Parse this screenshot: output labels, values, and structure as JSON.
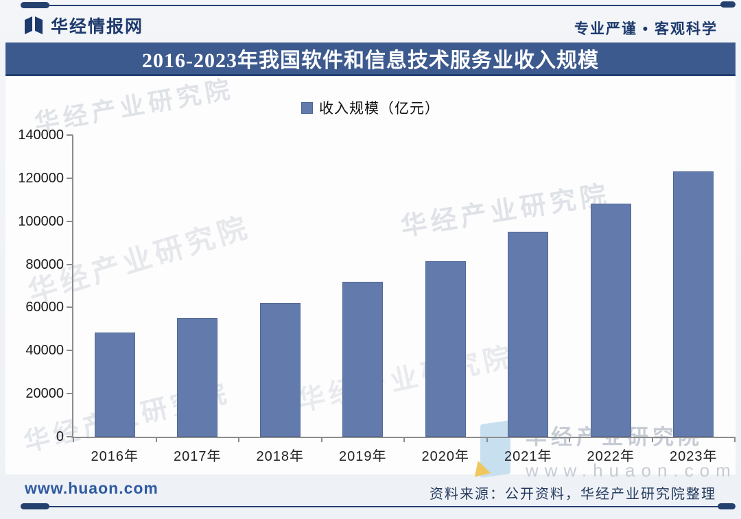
{
  "header": {
    "brand": "华经情报网",
    "tagline": "专业严谨 • 客观科学",
    "logo_icon": "open-book-logo"
  },
  "title": "2016-2023年我国软件和信息技术服务业收入规模",
  "chart_data": {
    "type": "bar",
    "title": "2016-2023年我国软件和信息技术服务业收入规模",
    "series_name": "收入规模（亿元）",
    "categories": [
      "2016年",
      "2017年",
      "2018年",
      "2019年",
      "2020年",
      "2021年",
      "2022年",
      "2023年"
    ],
    "values": [
      48511,
      55037,
      61909,
      71768,
      81616,
      94994,
      108126,
      123258
    ],
    "xlabel": "",
    "ylabel": "",
    "ylim": [
      0,
      140000
    ],
    "ytick_step": 20000,
    "grid": false,
    "legend_position": "top-center",
    "bar_color": "#627aac"
  },
  "watermark": {
    "text": "华经产业研究院",
    "url": "www.huaon.com"
  },
  "footer": {
    "site": "www.huaon.com",
    "source": "资料来源：公开资料，华经产业研究院整理"
  },
  "colors": {
    "title_bar": "#3d5a8e",
    "bar_fill": "#627aac",
    "brand_navy": "#1e3a6d",
    "rule_navy": "#24406e",
    "link_blue": "#2e5aa0",
    "axis_gray": "#8c8c8c"
  }
}
